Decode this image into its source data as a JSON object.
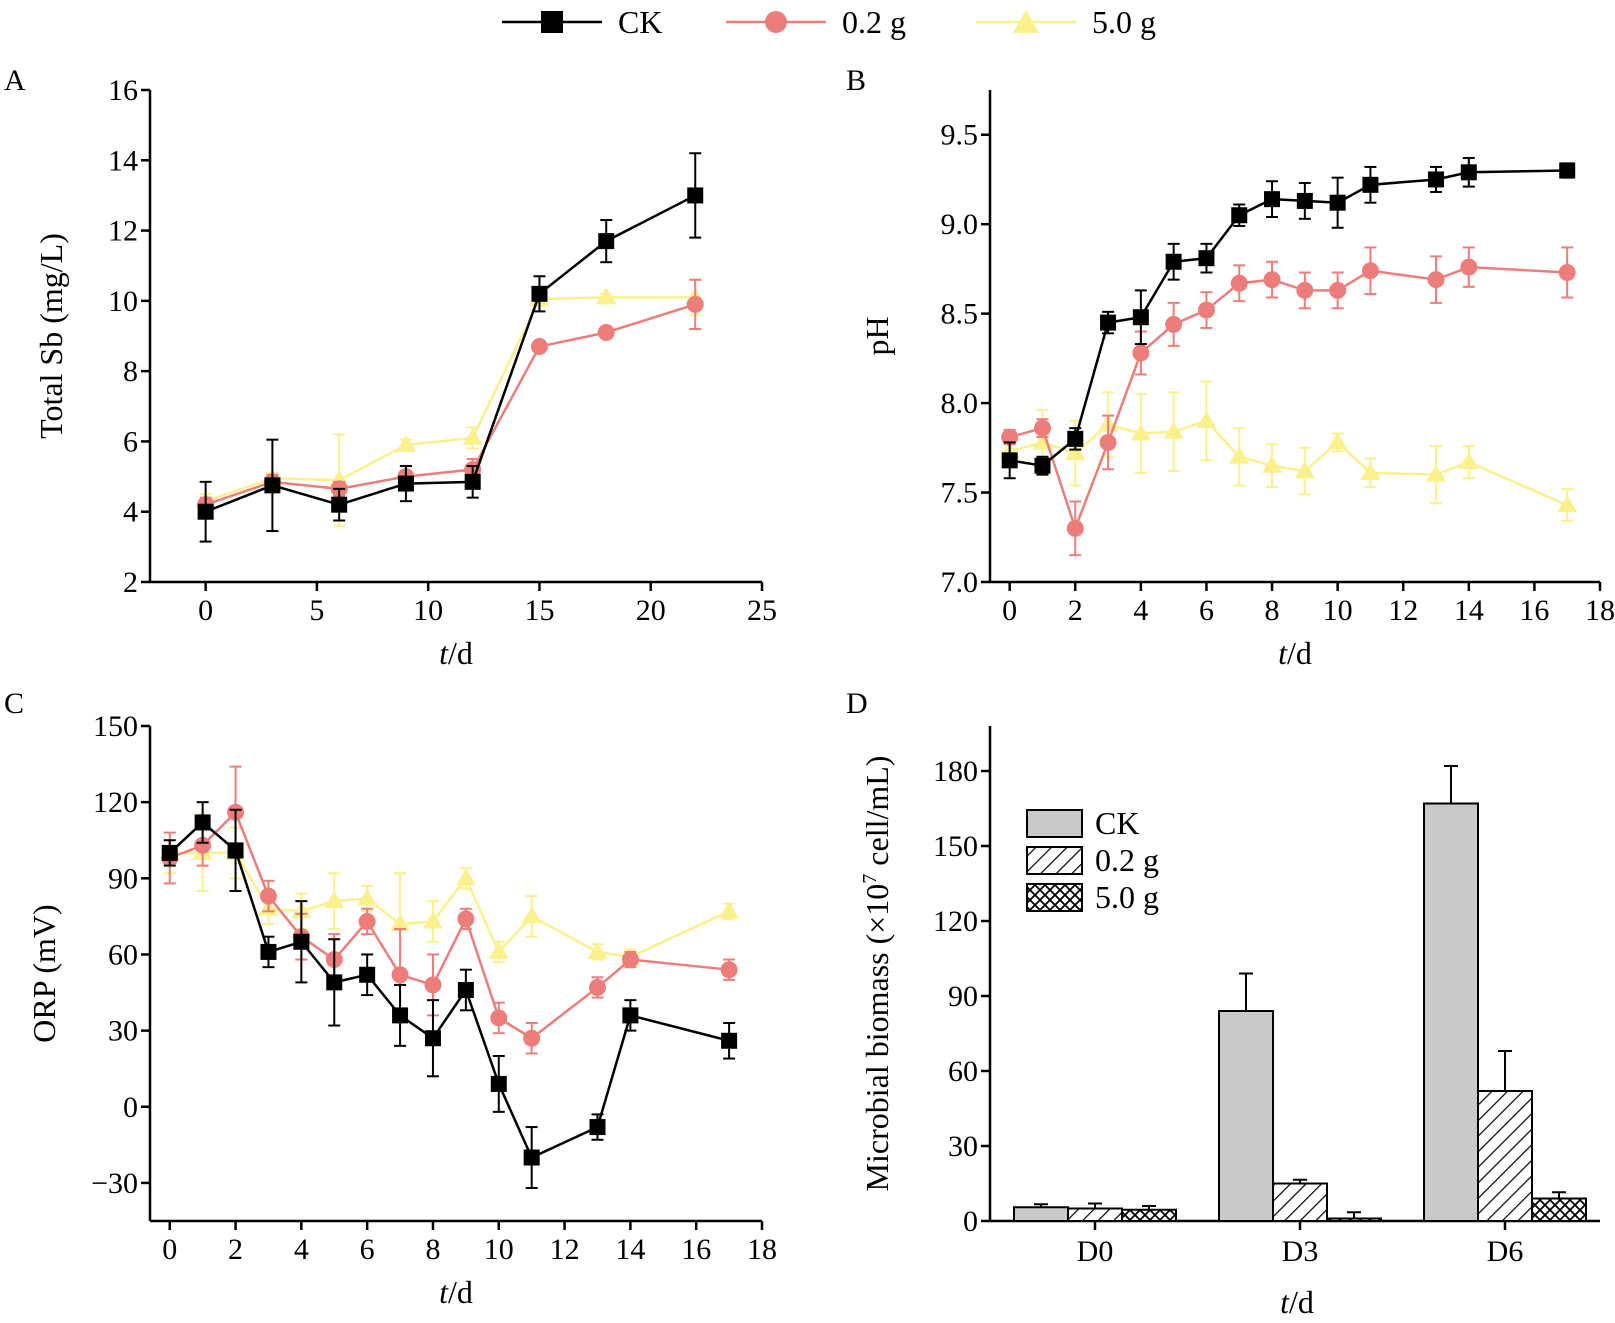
{
  "legend": {
    "series": [
      {
        "name": "CK",
        "color": "#000000",
        "marker": "square"
      },
      {
        "name": "0.2 g",
        "color": "#ED7D7A",
        "marker": "circle"
      },
      {
        "name": "5.0 g",
        "color": "#FAF08C",
        "marker": "triangle"
      }
    ]
  },
  "chart_data": [
    {
      "panel": "A",
      "type": "line",
      "xlabel_italic": "t",
      "xlabel_rest": "/d",
      "ylabel": "Total Sb (mg/L)",
      "xlim": [
        -2.5,
        25
      ],
      "ylim": [
        2,
        16
      ],
      "xticks": [
        0,
        5,
        10,
        15,
        20,
        25
      ],
      "yticks": [
        2,
        4,
        6,
        8,
        10,
        12,
        14,
        16
      ],
      "x": [
        0,
        3,
        6,
        9,
        12,
        15,
        18,
        22
      ],
      "series": [
        {
          "name": "CK",
          "values": [
            4.0,
            4.75,
            4.2,
            4.8,
            4.85,
            10.2,
            11.7,
            13.0
          ],
          "errors": [
            0.85,
            1.3,
            0.45,
            0.5,
            0.45,
            0.5,
            0.6,
            1.2
          ]
        },
        {
          "name": "0.2 g",
          "values": [
            4.2,
            4.85,
            4.65,
            5.0,
            5.2,
            8.7,
            9.1,
            9.9
          ],
          "errors": [
            0.2,
            0.2,
            0.2,
            0.3,
            0.3,
            0.1,
            0.1,
            0.7
          ]
        },
        {
          "name": "5.0 g",
          "values": [
            4.3,
            4.95,
            4.9,
            5.9,
            6.1,
            10.05,
            10.1,
            10.1
          ],
          "errors": [
            0.2,
            0.15,
            1.3,
            0.15,
            0.3,
            0.2,
            0.1,
            0.5
          ]
        }
      ]
    },
    {
      "panel": "B",
      "type": "line",
      "xlabel_italic": "t",
      "xlabel_rest": "/d",
      "ylabel": "pH",
      "xlim": [
        -0.6,
        18
      ],
      "ylim": [
        7.0,
        9.75
      ],
      "xticks": [
        0,
        2,
        4,
        6,
        8,
        10,
        12,
        14,
        16,
        18
      ],
      "yticks": [
        "7.0",
        "7.5",
        "8.0",
        "8.5",
        "9.0",
        "9.5"
      ],
      "x": [
        0,
        1,
        2,
        3,
        4,
        5,
        6,
        7,
        8,
        9,
        10,
        11,
        13,
        14,
        17
      ],
      "series": [
        {
          "name": "CK",
          "values": [
            7.68,
            7.65,
            7.8,
            8.45,
            8.48,
            8.79,
            8.81,
            9.05,
            9.14,
            9.13,
            9.12,
            9.22,
            9.25,
            9.29,
            9.3
          ],
          "errors": [
            0.1,
            0.05,
            0.06,
            0.06,
            0.15,
            0.1,
            0.08,
            0.06,
            0.1,
            0.1,
            0.14,
            0.1,
            0.07,
            0.08,
            0.04
          ]
        },
        {
          "name": "0.2 g",
          "values": [
            7.81,
            7.86,
            7.3,
            7.78,
            8.28,
            8.44,
            8.52,
            8.67,
            8.69,
            8.63,
            8.63,
            8.74,
            8.69,
            8.76,
            8.73
          ],
          "errors": [
            0.04,
            0.05,
            0.15,
            0.15,
            0.12,
            0.12,
            0.1,
            0.1,
            0.1,
            0.1,
            0.1,
            0.13,
            0.13,
            0.11,
            0.14
          ]
        },
        {
          "name": "5.0 g",
          "values": [
            7.73,
            7.78,
            7.72,
            7.88,
            7.83,
            7.84,
            7.9,
            7.7,
            7.65,
            7.62,
            7.78,
            7.61,
            7.6,
            7.67,
            7.43
          ],
          "errors": [
            0.08,
            0.18,
            0.18,
            0.18,
            0.22,
            0.22,
            0.22,
            0.16,
            0.12,
            0.13,
            0.05,
            0.08,
            0.16,
            0.09,
            0.09
          ]
        }
      ]
    },
    {
      "panel": "C",
      "type": "line",
      "xlabel_italic": "t",
      "xlabel_rest": "/d",
      "ylabel": "ORP (mV)",
      "xlim": [
        -0.6,
        18
      ],
      "ylim": [
        -45,
        150
      ],
      "xticks": [
        0,
        2,
        4,
        6,
        8,
        10,
        12,
        14,
        16,
        18
      ],
      "yticks": [
        "−30",
        "0",
        "30",
        "60",
        "90",
        "120",
        "150"
      ],
      "x": [
        0,
        1,
        2,
        3,
        4,
        5,
        6,
        7,
        8,
        9,
        10,
        11,
        13,
        14,
        17
      ],
      "series": [
        {
          "name": "CK",
          "values": [
            100,
            112,
            101,
            61,
            65,
            49,
            52,
            36,
            27,
            46,
            9,
            -20,
            -8,
            36,
            26
          ],
          "errors": [
            5,
            8,
            16,
            6,
            16,
            17,
            8,
            12,
            15,
            8,
            11,
            12,
            5,
            6,
            7
          ]
        },
        {
          "name": "0.2 g",
          "values": [
            98,
            103,
            116,
            83,
            67,
            58,
            73,
            52,
            48,
            74,
            35,
            27,
            47,
            58,
            54
          ],
          "errors": [
            10,
            8,
            18,
            6,
            9,
            10,
            5,
            18,
            12,
            4,
            6,
            6,
            4,
            3,
            4
          ]
        },
        {
          "name": "5.0 g",
          "values": [
            100,
            100,
            100,
            78,
            77,
            81,
            82,
            72,
            73,
            90,
            61,
            75,
            61,
            59,
            77
          ],
          "errors": [
            8,
            15,
            10,
            6,
            7,
            11,
            5,
            20,
            8,
            4,
            4,
            8,
            3,
            3,
            3
          ]
        }
      ]
    },
    {
      "panel": "D",
      "type": "bar",
      "xlabel_italic": "t",
      "xlabel_rest": "/d",
      "ylabel_pre": "Microbial biomass (×10",
      "ylabel_sup": "7",
      "ylabel_post": " cell/mL)",
      "ylim": [
        0,
        198
      ],
      "yticks": [
        0,
        30,
        60,
        90,
        120,
        150,
        180
      ],
      "categories": [
        "D0",
        "D3",
        "D6"
      ],
      "series": [
        {
          "name": "CK",
          "pattern": "gray",
          "values": [
            5.5,
            84,
            167
          ],
          "errors": [
            1.2,
            15,
            15
          ]
        },
        {
          "name": "0.2 g",
          "pattern": "hatch",
          "values": [
            5.0,
            15,
            52
          ],
          "errors": [
            2.0,
            1.5,
            16
          ]
        },
        {
          "name": "5.0 g",
          "pattern": "cross",
          "values": [
            4.5,
            1.0,
            9.0
          ],
          "errors": [
            1.5,
            2.5,
            2.5
          ]
        }
      ]
    }
  ]
}
